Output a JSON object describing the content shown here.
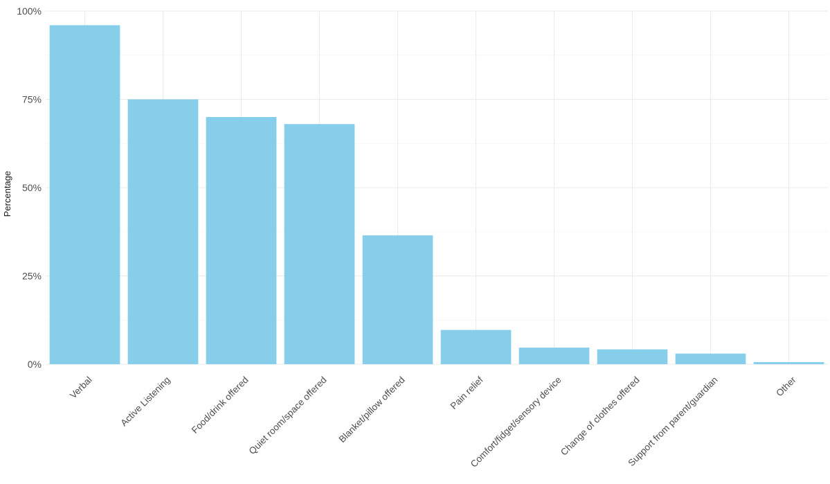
{
  "chart_data": {
    "type": "bar",
    "title": "",
    "xlabel": "",
    "ylabel": "Percentage",
    "categories": [
      "Verbal",
      "Active Listening",
      "Food/drink offered",
      "Quiet room/space offered",
      "Blanket/pillow offered",
      "Pain relief",
      "Comfort/fidget/sensory device",
      "Change of clothes offered",
      "Support from parent/guardian",
      "Other"
    ],
    "values": [
      96,
      75,
      70,
      68,
      36.5,
      9.7,
      4.7,
      4.2,
      3.0,
      0.6
    ],
    "ylim": [
      0,
      100
    ],
    "yticks": [
      0,
      25,
      50,
      75,
      100
    ],
    "ytick_labels": [
      "0%",
      "25%",
      "50%",
      "75%",
      "100%"
    ],
    "bar_color": "#87CEEB",
    "grid": true,
    "legend": "none"
  }
}
